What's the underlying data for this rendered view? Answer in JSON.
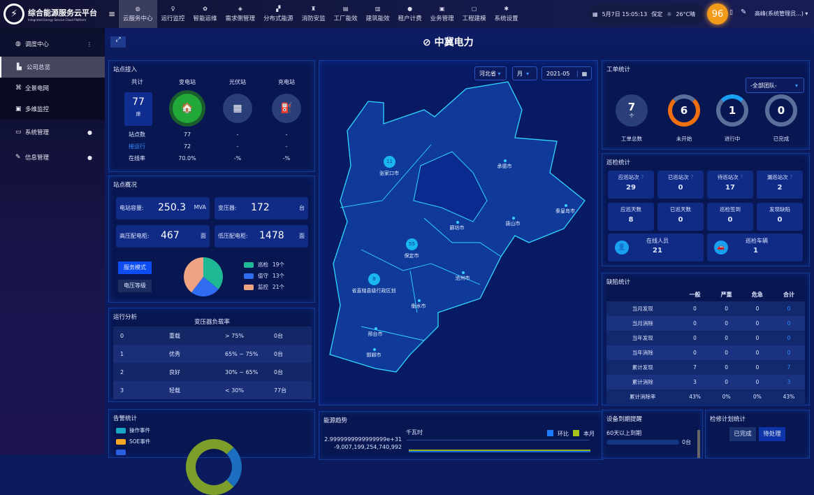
{
  "app": {
    "title": "综合能源服务云平台",
    "subtitle": "Integrated Energy Service Cloud Platform"
  },
  "nav": [
    {
      "label": "云服务中心",
      "icon": "globe-icon",
      "active": true
    },
    {
      "label": "运行监控",
      "icon": "bulb-icon"
    },
    {
      "label": "智能运维",
      "icon": "gear-icon"
    },
    {
      "label": "需求侧管理",
      "icon": "shield-icon"
    },
    {
      "label": "分布式能源",
      "icon": "solar-icon"
    },
    {
      "label": "消防安监",
      "icon": "fire-icon"
    },
    {
      "label": "工厂能效",
      "icon": "factory-icon"
    },
    {
      "label": "建筑能效",
      "icon": "building-icon"
    },
    {
      "label": "租户计费",
      "icon": "coin-icon"
    },
    {
      "label": "业务管理",
      "icon": "briefcase-icon"
    },
    {
      "label": "工程建模",
      "icon": "cube-icon"
    },
    {
      "label": "系统设置",
      "icon": "settings-icon"
    }
  ],
  "status": {
    "datetime": "5月7日 15:05:13",
    "city": "保定",
    "weather": "26°C晴",
    "badge": "96",
    "user": "高峰(系统管理员...)"
  },
  "sidebar": [
    {
      "label": "调度中心",
      "icon": "globe-icon",
      "mark": "⋮"
    },
    {
      "label": "公司总览",
      "icon": "chart-icon",
      "sub": true,
      "active": true
    },
    {
      "label": "全景电网",
      "icon": "network-icon",
      "sub": true
    },
    {
      "label": "多维监控",
      "icon": "monitor-icon",
      "sub": true
    },
    {
      "label": "系统管理",
      "icon": "desktop-icon",
      "mark": "●"
    },
    {
      "label": "信息管理",
      "icon": "edit-icon",
      "mark": "●"
    }
  ],
  "header": {
    "title": "中冀电力"
  },
  "station_access": {
    "title": "站点接入",
    "total_label": "共计",
    "total": "77",
    "total_unit": "座",
    "columns": [
      "变电站",
      "光伏站",
      "充电站"
    ],
    "rows": [
      {
        "label": "站点数",
        "values": [
          "77",
          "-",
          "-"
        ]
      },
      {
        "label": "接运行",
        "values": [
          "72",
          "-",
          "-"
        ]
      },
      {
        "label": "在线率",
        "values": [
          "70.0%",
          "-%",
          "-%"
        ]
      }
    ]
  },
  "station_overview": {
    "title": "站点概况",
    "stats": [
      {
        "label": "电站容量:",
        "value": "250.3",
        "unit": "MVA"
      },
      {
        "label": "变压器:",
        "value": "172",
        "unit": "台"
      },
      {
        "label": "高压配电柜:",
        "value": "467",
        "unit": "面"
      },
      {
        "label": "低压配电柜:",
        "value": "1478",
        "unit": "面"
      }
    ],
    "buttons": [
      "服务模式",
      "电压等级"
    ],
    "pie": [
      {
        "label": "巡检",
        "value": 19,
        "text": "19个",
        "color": "#1fb894"
      },
      {
        "label": "值守",
        "value": 13,
        "text": "13个",
        "color": "#2f6cf2"
      },
      {
        "label": "监控",
        "value": 21,
        "text": "21个",
        "color": "#eea483"
      }
    ]
  },
  "run_analysis": {
    "title": "运行分析",
    "subtitle": "变压器负载率",
    "rows": [
      [
        "0",
        "重载",
        "> 75%",
        "0台"
      ],
      [
        "1",
        "优秀",
        "65% ~ 75%",
        "0台"
      ],
      [
        "2",
        "良好",
        "30% ~ 65%",
        "0台"
      ],
      [
        "3",
        "轻载",
        "< 30%",
        "77台"
      ]
    ]
  },
  "alarm": {
    "title": "告警统计",
    "legend": [
      {
        "label": "操作事件",
        "color": "#1aa8c8"
      },
      {
        "label": "SOE事件",
        "color": "#f5a623"
      },
      {
        "label": "",
        "color": "#2a5fe0"
      }
    ]
  },
  "map": {
    "province": "河北省",
    "period": "月",
    "date": "2021-05",
    "cities": [
      {
        "name": "张家口市",
        "count": "11"
      },
      {
        "name": "承德市"
      },
      {
        "name": "秦皇岛市"
      },
      {
        "name": "唐山市"
      },
      {
        "name": "廊坊市"
      },
      {
        "name": "保定市",
        "count": "55"
      },
      {
        "name": "沧州市"
      },
      {
        "name": "省直辖县级行政区划",
        "count": "8"
      },
      {
        "name": "衡水市"
      },
      {
        "name": "邢台市"
      },
      {
        "name": "邯郸市"
      }
    ]
  },
  "energy": {
    "title": "能源趋势",
    "unit": "千瓦时",
    "legend": [
      {
        "label": "环比",
        "color": "#1a7cff"
      },
      {
        "label": "本月",
        "color": "#a6c51a"
      }
    ],
    "yticks": [
      "2.9999999999999999e+31",
      "-9,007,199,254,740,992"
    ]
  },
  "work_orders": {
    "title": "工单统计",
    "team": "-全部团队-",
    "items": [
      {
        "label": "工单总数",
        "value": "7",
        "unit": "个"
      },
      {
        "label": "未开始",
        "value": "6"
      },
      {
        "label": "进行中",
        "value": "1"
      },
      {
        "label": "已完成",
        "value": "0"
      }
    ]
  },
  "inspection": {
    "title": "巡检统计",
    "cells": [
      {
        "label": "应巡站次",
        "value": "29"
      },
      {
        "label": "已巡站次",
        "value": "0"
      },
      {
        "label": "待巡站次",
        "value": "17"
      },
      {
        "label": "漏巡站次",
        "value": "2"
      },
      {
        "label": "应巡天数",
        "value": "8"
      },
      {
        "label": "已巡天数",
        "value": "0"
      },
      {
        "label": "巡检签到",
        "value": "0"
      },
      {
        "label": "发现缺陷",
        "value": "0"
      }
    ],
    "people": {
      "label": "在线人员",
      "value": "21"
    },
    "vehicles": {
      "label": "巡检车辆",
      "value": "1"
    }
  },
  "defects": {
    "title": "缺陷统计",
    "headers": [
      "",
      "一般",
      "严重",
      "危急",
      "合计"
    ],
    "rows": [
      [
        "当月发现",
        "0",
        "0",
        "0",
        "0"
      ],
      [
        "当月消除",
        "0",
        "0",
        "0",
        "0"
      ],
      [
        "当年发现",
        "0",
        "0",
        "0",
        "0"
      ],
      [
        "当年消除",
        "0",
        "0",
        "0",
        "0"
      ],
      [
        "累计发现",
        "7",
        "0",
        "0",
        "7"
      ],
      [
        "累计消除",
        "3",
        "0",
        "0",
        "3"
      ],
      [
        "累计消除率",
        "43%",
        "0%",
        "0%",
        "43%"
      ]
    ]
  },
  "expiry": {
    "title": "设备到期提醒",
    "item": "60天以上到期",
    "value": "0台"
  },
  "maint": {
    "title": "检修计划统计",
    "buttons": [
      "已完成",
      "待处理"
    ]
  }
}
